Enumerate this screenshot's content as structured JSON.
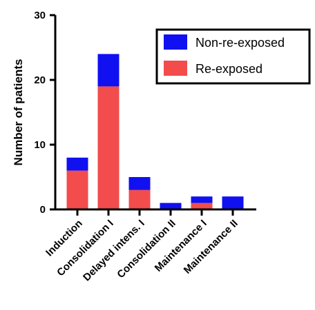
{
  "chart_data": {
    "type": "bar",
    "stacked": true,
    "categories": [
      "Induction",
      "Consolidation I",
      "Delayed intens. I",
      "Consolidation II",
      "Maintenance I",
      "Maintenance II"
    ],
    "series": [
      {
        "name": "Re-exposed",
        "values": [
          6,
          19,
          3,
          0,
          1,
          0
        ],
        "color": "#f24c4c"
      },
      {
        "name": "Non-re-exposed",
        "values": [
          2,
          5,
          2,
          1,
          1,
          2
        ],
        "color": "#1010f0"
      }
    ],
    "ylabel": "Number of patients",
    "xlabel": "",
    "ylim": [
      0,
      30
    ],
    "yticks": [
      0,
      10,
      20,
      30
    ],
    "grid": false,
    "legend_position": "top-right",
    "legend_order": [
      "Non-re-exposed",
      "Re-exposed"
    ]
  }
}
